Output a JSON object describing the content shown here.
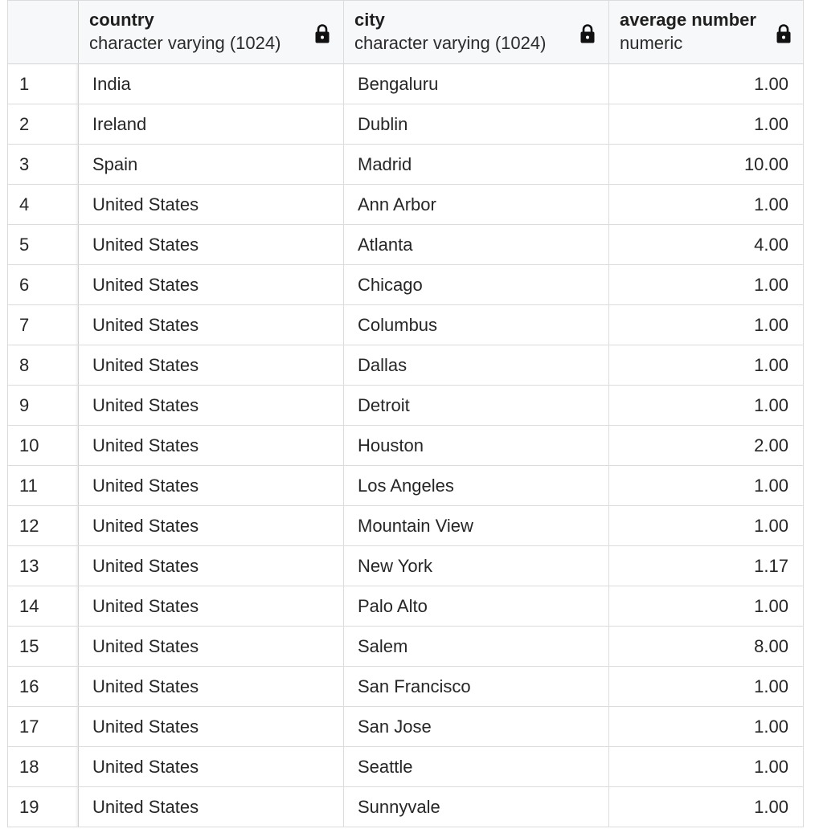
{
  "columns": [
    {
      "name": "country",
      "type": "character varying (1024)"
    },
    {
      "name": "city",
      "type": "character varying (1024)"
    },
    {
      "name": "average number",
      "type": "numeric"
    }
  ],
  "icons": {
    "column_lock": "lock-icon"
  },
  "rows": [
    {
      "n": "1",
      "country": "India",
      "city": "Bengaluru",
      "avg": "1.00"
    },
    {
      "n": "2",
      "country": "Ireland",
      "city": "Dublin",
      "avg": "1.00"
    },
    {
      "n": "3",
      "country": "Spain",
      "city": "Madrid",
      "avg": "10.00"
    },
    {
      "n": "4",
      "country": "United States",
      "city": "Ann Arbor",
      "avg": "1.00"
    },
    {
      "n": "5",
      "country": "United States",
      "city": "Atlanta",
      "avg": "4.00"
    },
    {
      "n": "6",
      "country": "United States",
      "city": "Chicago",
      "avg": "1.00"
    },
    {
      "n": "7",
      "country": "United States",
      "city": "Columbus",
      "avg": "1.00"
    },
    {
      "n": "8",
      "country": "United States",
      "city": "Dallas",
      "avg": "1.00"
    },
    {
      "n": "9",
      "country": "United States",
      "city": "Detroit",
      "avg": "1.00"
    },
    {
      "n": "10",
      "country": "United States",
      "city": "Houston",
      "avg": "2.00"
    },
    {
      "n": "11",
      "country": "United States",
      "city": "Los Angeles",
      "avg": "1.00"
    },
    {
      "n": "12",
      "country": "United States",
      "city": "Mountain View",
      "avg": "1.00"
    },
    {
      "n": "13",
      "country": "United States",
      "city": "New York",
      "avg": "1.17"
    },
    {
      "n": "14",
      "country": "United States",
      "city": "Palo Alto",
      "avg": "1.00"
    },
    {
      "n": "15",
      "country": "United States",
      "city": "Salem",
      "avg": "8.00"
    },
    {
      "n": "16",
      "country": "United States",
      "city": "San Francisco",
      "avg": "1.00"
    },
    {
      "n": "17",
      "country": "United States",
      "city": "San Jose",
      "avg": "1.00"
    },
    {
      "n": "18",
      "country": "United States",
      "city": "Seattle",
      "avg": "1.00"
    },
    {
      "n": "19",
      "country": "United States",
      "city": "Sunnyvale",
      "avg": "1.00"
    }
  ]
}
